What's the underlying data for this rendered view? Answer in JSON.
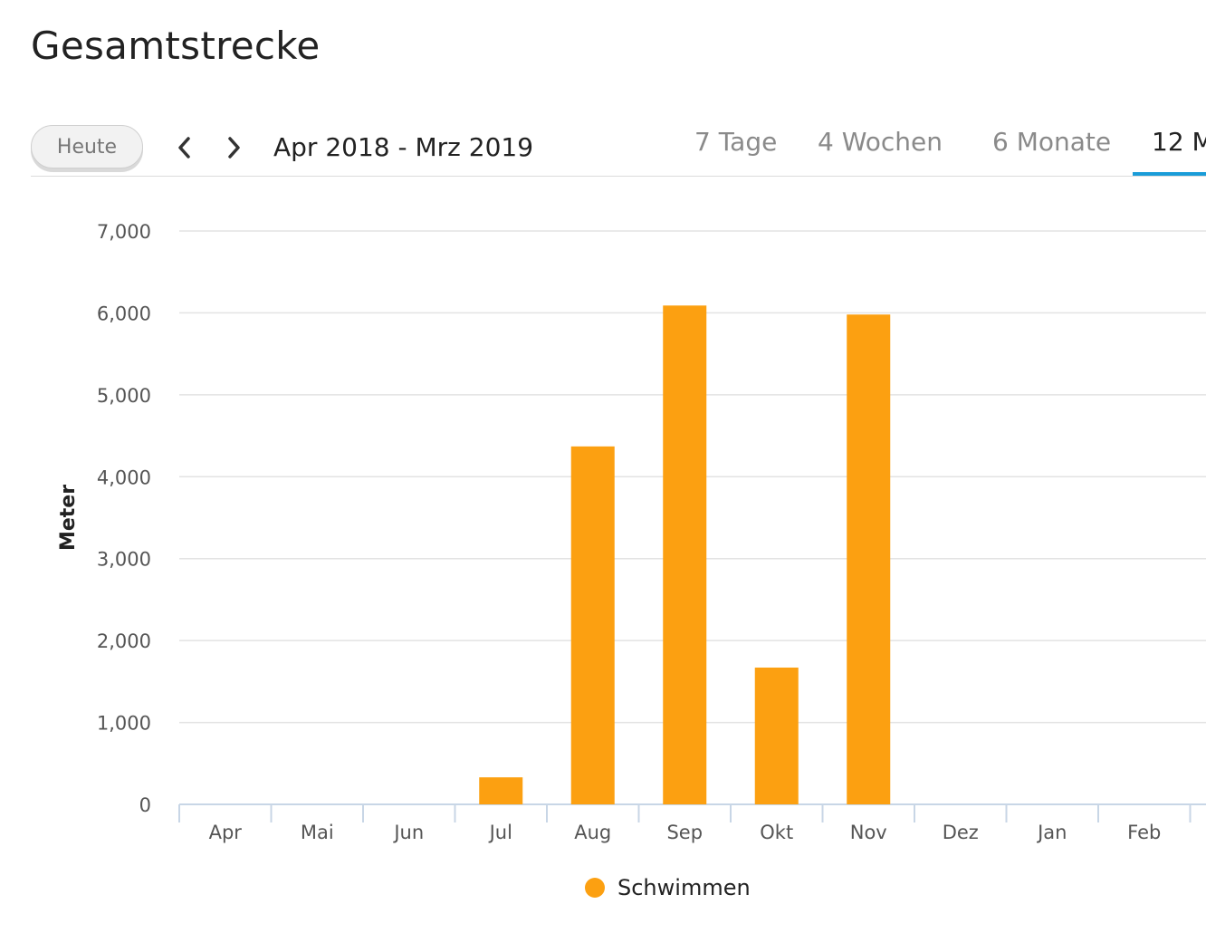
{
  "page": {
    "title": "Gesamtstrecke"
  },
  "toolbar": {
    "today_label": "Heute",
    "prev_icon": "chevron-left-icon",
    "next_icon": "chevron-right-icon",
    "range_label": "Apr 2018 - Mrz 2019",
    "tabs": [
      {
        "label": "7 Tage",
        "active": false
      },
      {
        "label": "4 Wochen",
        "active": false
      },
      {
        "label": "6 Monate",
        "active": false
      },
      {
        "label": "12 M",
        "active": true
      }
    ],
    "active_color": "#1a9cd8"
  },
  "chart_data": {
    "type": "bar",
    "ylabel": "Meter",
    "xlabel": "",
    "ylim": [
      0,
      7000
    ],
    "yticks": [
      0,
      1000,
      2000,
      3000,
      4000,
      5000,
      6000,
      7000
    ],
    "ytick_labels": [
      "0",
      "1,000",
      "2,000",
      "3,000",
      "4,000",
      "5,000",
      "6,000",
      "7,000"
    ],
    "categories": [
      "Apr",
      "Mai",
      "Jun",
      "Jul",
      "Aug",
      "Sep",
      "Okt",
      "Nov",
      "Dez",
      "Jan",
      "Feb"
    ],
    "series": [
      {
        "name": "Schwimmen",
        "color": "#fca011",
        "values": [
          0,
          0,
          0,
          330,
          4370,
          6090,
          1670,
          5980,
          0,
          0,
          0
        ]
      }
    ],
    "grid": true,
    "legend": "bottom-center"
  }
}
